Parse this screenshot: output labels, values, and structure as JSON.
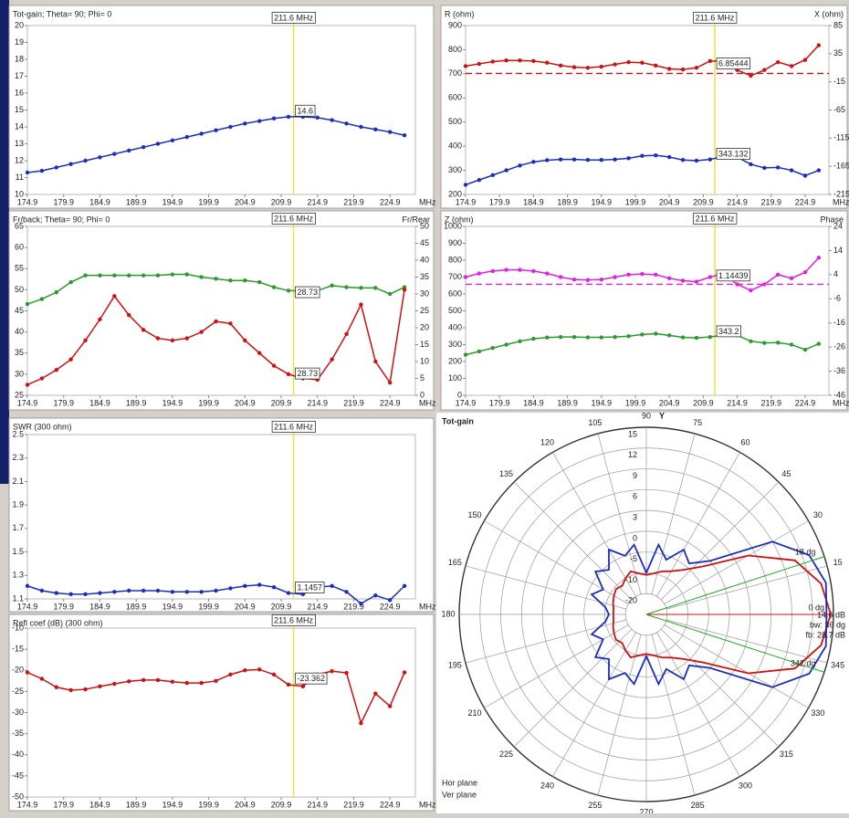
{
  "chart_data": [
    {
      "type": "line",
      "ylabel": "Tot-gain; Theta= 90; Phi= 0",
      "xlabel": "MHz",
      "x": [
        174.9,
        176.9,
        178.9,
        180.9,
        182.9,
        184.9,
        186.9,
        188.9,
        190.9,
        192.9,
        194.9,
        196.9,
        198.9,
        200.9,
        202.9,
        204.9,
        206.9,
        208.9,
        210.9,
        212.9,
        214.9,
        216.9,
        218.9,
        220.9,
        222.9,
        224.9,
        226.9
      ],
      "xlim": [
        174.9,
        228.4
      ],
      "xticks": [
        174.9,
        179.9,
        184.9,
        189.9,
        194.9,
        199.9,
        204.9,
        209.9,
        214.9,
        219.9,
        224.9
      ],
      "ylim": [
        10,
        20
      ],
      "yticks": [
        10,
        11,
        12,
        13,
        14,
        15,
        16,
        17,
        18,
        19,
        20
      ],
      "cursor": {
        "value": 211.6,
        "label": "211.6 MHz"
      },
      "series": [
        {
          "color": "#1a2dbf",
          "cursor_value": 14.6,
          "values": [
            11.3,
            11.4,
            11.6,
            11.8,
            12.0,
            12.2,
            12.4,
            12.6,
            12.8,
            13.0,
            13.2,
            13.4,
            13.6,
            13.8,
            14.0,
            14.2,
            14.35,
            14.5,
            14.6,
            14.6,
            14.55,
            14.4,
            14.2,
            14.0,
            13.85,
            13.7,
            13.5
          ]
        }
      ]
    },
    {
      "type": "line",
      "ylabel": "R (ohm)",
      "y2label": "X (ohm)",
      "y2color": "#d01010",
      "xlabel": "MHz",
      "x": [
        174.9,
        176.9,
        178.9,
        180.9,
        182.9,
        184.9,
        186.9,
        188.9,
        190.9,
        192.9,
        194.9,
        196.9,
        198.9,
        200.9,
        202.9,
        204.9,
        206.9,
        208.9,
        210.9,
        212.9,
        214.9,
        216.9,
        218.9,
        220.9,
        222.9,
        224.9,
        226.9
      ],
      "xlim": [
        174.9,
        228.4
      ],
      "xticks": [
        174.9,
        179.9,
        184.9,
        189.9,
        194.9,
        199.9,
        204.9,
        209.9,
        214.9,
        219.9,
        224.9
      ],
      "ylim": [
        200,
        900
      ],
      "yticks": [
        200,
        300,
        400,
        500,
        600,
        700,
        800,
        900
      ],
      "y2lim": [
        -215,
        85
      ],
      "y2ticks": [
        85,
        35,
        -15,
        -65,
        -115,
        -165,
        -215
      ],
      "ref_line": {
        "axis": "y2",
        "value": 0,
        "color": "#d01010"
      },
      "cursor": {
        "value": 211.6,
        "label": "211.6 MHz"
      },
      "series": [
        {
          "color": "#d01010",
          "axis": "y2",
          "cursor_value": 6.85444,
          "values": [
            13,
            17,
            21,
            23,
            23,
            22,
            19,
            14,
            11,
            10,
            12,
            16,
            20,
            19,
            14,
            8,
            7,
            10,
            22,
            22,
            6,
            -4,
            6,
            20,
            13,
            24,
            50
          ]
        },
        {
          "color": "#1a2dbf",
          "cursor_value": 343.132,
          "values": [
            240,
            260,
            280,
            300,
            320,
            335,
            342,
            345,
            345,
            343,
            343,
            345,
            350,
            360,
            362,
            355,
            343,
            340,
            345,
            358,
            355,
            325,
            310,
            312,
            300,
            278,
            300
          ]
        }
      ]
    },
    {
      "type": "line",
      "ylabel": "Fr/back; Theta= 90; Phi= 0",
      "y2label": "Fr/Rear",
      "y2color": "#2a9a2a",
      "xlabel": "MHz",
      "x": [
        174.9,
        176.9,
        178.9,
        180.9,
        182.9,
        184.9,
        186.9,
        188.9,
        190.9,
        192.9,
        194.9,
        196.9,
        198.9,
        200.9,
        202.9,
        204.9,
        206.9,
        208.9,
        210.9,
        212.9,
        214.9,
        216.9,
        218.9,
        220.9,
        222.9,
        224.9,
        226.9
      ],
      "xlim": [
        174.9,
        228.4
      ],
      "xticks": [
        174.9,
        179.9,
        184.9,
        189.9,
        194.9,
        199.9,
        204.9,
        209.9,
        214.9,
        219.9,
        224.9
      ],
      "ylim": [
        25,
        65
      ],
      "yticks": [
        25,
        30,
        35,
        40,
        45,
        50,
        55,
        60,
        65
      ],
      "y2lim": [
        0,
        50
      ],
      "y2ticks": [
        0,
        5,
        10,
        15,
        20,
        25,
        30,
        35,
        40,
        45,
        50
      ],
      "cursor": {
        "value": 211.6,
        "label": "211.6 MHz"
      },
      "series": [
        {
          "color": "#2a9a2a",
          "axis": "y2",
          "cursor_value": 28.73,
          "values": [
            27,
            28.5,
            30.5,
            33.5,
            35.5,
            35.5,
            35.5,
            35.5,
            35.5,
            35.5,
            35.8,
            35.8,
            35,
            34.5,
            34,
            34,
            33.5,
            32,
            31,
            30.8,
            31,
            32.5,
            32,
            31.8,
            31.8,
            30,
            32
          ]
        },
        {
          "color": "#d01010",
          "cursor_value": 28.73,
          "values": [
            27.5,
            29,
            31,
            33.5,
            38,
            43,
            48.5,
            44,
            40.5,
            38.5,
            38,
            38.5,
            40,
            42.5,
            42,
            38,
            35,
            32,
            30,
            29,
            28.7,
            33.5,
            39.5,
            46.5,
            33,
            28,
            50
          ]
        }
      ]
    },
    {
      "type": "line",
      "ylabel": "Z (ohm)",
      "y2label": "Phase",
      "y2color": "#e020e0",
      "xlabel": "MHz",
      "x": [
        174.9,
        176.9,
        178.9,
        180.9,
        182.9,
        184.9,
        186.9,
        188.9,
        190.9,
        192.9,
        194.9,
        196.9,
        198.9,
        200.9,
        202.9,
        204.9,
        206.9,
        208.9,
        210.9,
        212.9,
        214.9,
        216.9,
        218.9,
        220.9,
        222.9,
        224.9,
        226.9
      ],
      "xlim": [
        174.9,
        228.4
      ],
      "xticks": [
        174.9,
        179.9,
        184.9,
        189.9,
        194.9,
        199.9,
        204.9,
        209.9,
        214.9,
        219.9,
        224.9
      ],
      "ylim": [
        0,
        1000
      ],
      "yticks": [
        0,
        100,
        200,
        300,
        400,
        500,
        600,
        700,
        800,
        900,
        1000
      ],
      "y2lim": [
        -46,
        24
      ],
      "y2ticks": [
        24,
        14,
        4,
        -6,
        -16,
        -26,
        -36,
        -46
      ],
      "ref_line": {
        "axis": "y2",
        "value": 0,
        "color": "#e020e0"
      },
      "cursor": {
        "value": 211.6,
        "label": "211.6 MHz"
      },
      "series": [
        {
          "color": "#e020e0",
          "axis": "y2",
          "cursor_value": 1.14439,
          "values": [
            3,
            4.5,
            5.5,
            6,
            6,
            5.5,
            4.5,
            3,
            2,
            1.8,
            2,
            3,
            4,
            4.3,
            4,
            2.5,
            1.5,
            1.1,
            3,
            4.5,
            0,
            -2.5,
            0,
            4,
            2.5,
            5,
            11
          ]
        },
        {
          "color": "#2a9a2a",
          "cursor_value": 343.2,
          "values": [
            240,
            260,
            280,
            300,
            320,
            335,
            342,
            345,
            345,
            343,
            343,
            345,
            350,
            360,
            365,
            355,
            343,
            340,
            345,
            358,
            355,
            320,
            310,
            312,
            300,
            270,
            305
          ]
        }
      ]
    },
    {
      "type": "line",
      "ylabel": "SWR (300 ohm)",
      "xlabel": "MHz",
      "x": [
        174.9,
        176.9,
        178.9,
        180.9,
        182.9,
        184.9,
        186.9,
        188.9,
        190.9,
        192.9,
        194.9,
        196.9,
        198.9,
        200.9,
        202.9,
        204.9,
        206.9,
        208.9,
        210.9,
        212.9,
        214.9,
        216.9,
        218.9,
        220.9,
        222.9,
        224.9,
        226.9
      ],
      "xlim": [
        174.9,
        228.4
      ],
      "xticks": [
        174.9,
        179.9,
        184.9,
        189.9,
        194.9,
        199.9,
        204.9,
        209.9,
        214.9,
        219.9,
        224.9
      ],
      "ylim": [
        1.1,
        2.5
      ],
      "yticks": [
        1.1,
        1.3,
        1.5,
        1.7,
        1.9,
        2.1,
        2.3,
        2.5
      ],
      "cursor": {
        "value": 211.6,
        "label": "211.6 MHz"
      },
      "series": [
        {
          "color": "#1a2dbf",
          "cursor_value": 1.1457,
          "values": [
            1.21,
            1.17,
            1.15,
            1.14,
            1.14,
            1.15,
            1.16,
            1.17,
            1.17,
            1.17,
            1.16,
            1.16,
            1.16,
            1.17,
            1.19,
            1.21,
            1.22,
            1.2,
            1.15,
            1.14,
            1.2,
            1.21,
            1.16,
            1.06,
            1.13,
            1.09,
            1.21
          ]
        }
      ]
    },
    {
      "type": "line",
      "ylabel": "Refl coef (dB) (300 ohm)",
      "ylabelcolor": "#d01010",
      "xlabel": "MHz",
      "x": [
        174.9,
        176.9,
        178.9,
        180.9,
        182.9,
        184.9,
        186.9,
        188.9,
        190.9,
        192.9,
        194.9,
        196.9,
        198.9,
        200.9,
        202.9,
        204.9,
        206.9,
        208.9,
        210.9,
        212.9,
        214.9,
        216.9,
        218.9,
        220.9,
        222.9,
        224.9,
        226.9
      ],
      "xlim": [
        174.9,
        228.4
      ],
      "xticks": [
        174.9,
        179.9,
        184.9,
        189.9,
        194.9,
        199.9,
        204.9,
        209.9,
        214.9,
        219.9,
        224.9
      ],
      "ylim": [
        -50,
        -10
      ],
      "yticks": [
        -50,
        -45,
        -40,
        -35,
        -30,
        -25,
        -20,
        -15,
        -10
      ],
      "cursor": {
        "value": 211.6,
        "label": "211.6 MHz"
      },
      "series": [
        {
          "color": "#d01010",
          "cursor_value": -23.362,
          "values": [
            -20.5,
            -22,
            -24,
            -24.7,
            -24.5,
            -23.8,
            -23.2,
            -22.6,
            -22.3,
            -22.3,
            -22.7,
            -23,
            -23,
            -22.5,
            -21,
            -20,
            -19.8,
            -21,
            -23.4,
            -23.8,
            -21,
            -20.2,
            -20.6,
            -32.5,
            -25.5,
            -28.5,
            -20.5
          ]
        }
      ]
    },
    {
      "type": "polar",
      "title": "Tot-gain",
      "axis_label": "Y",
      "rlim": [
        -30,
        15
      ],
      "rticks": [
        15,
        12,
        9,
        6,
        3,
        0,
        -5,
        -10,
        -20
      ],
      "angle_ticks": [
        15,
        30,
        45,
        60,
        75,
        90,
        105,
        120,
        135,
        150,
        165,
        180,
        195,
        210,
        225,
        240,
        255,
        270,
        285,
        300,
        315,
        330,
        345
      ],
      "theta": [
        0,
        10,
        20,
        30,
        40,
        50,
        60,
        70,
        80,
        90,
        100,
        110,
        120,
        130,
        140,
        150,
        160,
        170,
        180,
        190,
        200,
        210,
        220,
        230,
        240,
        250,
        260,
        270,
        280,
        290,
        300,
        310,
        320,
        330,
        340,
        350
      ],
      "series": [
        {
          "name": "Hor plane",
          "color": "#d01010",
          "values": [
            14.6,
            13.6,
            10.8,
            5,
            -2,
            -6,
            -8,
            -9,
            -10,
            -11,
            -10,
            -9,
            -10,
            -12,
            -11,
            -12,
            -13,
            -14,
            -14.1,
            -14,
            -13,
            -12,
            -11,
            -12,
            -10,
            -9,
            -10,
            -11,
            -10,
            -9,
            -8,
            -6,
            -2,
            5,
            10.8,
            13.6
          ]
        },
        {
          "name": "Ver plane",
          "color": "#1a2dbf",
          "values": [
            14,
            14.3,
            13,
            9,
            0,
            -4,
            -2,
            -6,
            -3,
            -10,
            -3,
            -5,
            -2,
            -6,
            -4,
            -8,
            -6,
            -10,
            -12,
            -10,
            -6,
            -8,
            -4,
            -6,
            -2,
            -5,
            -3,
            -10,
            -3,
            -6,
            -2,
            -4,
            0,
            9,
            13,
            14.3
          ]
        }
      ],
      "markers": [
        {
          "value": 18,
          "label": "18 dg",
          "color": "#22aa22"
        },
        {
          "value": 342,
          "label": "342 dg",
          "color": "#22aa22"
        },
        {
          "value": 0,
          "label": "0 dg",
          "color": "#d01010"
        }
      ],
      "annotations": [
        "14.6 dB",
        "bw: 36 dg",
        "fb: 28.7 dB"
      ]
    }
  ]
}
